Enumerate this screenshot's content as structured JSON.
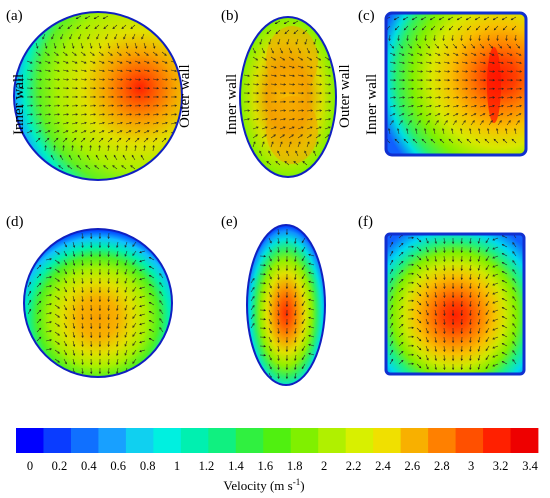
{
  "panels": [
    {
      "id": "a",
      "label": "(a)",
      "shape": "circle",
      "hotspot": "right"
    },
    {
      "id": "b",
      "label": "(b)",
      "shape": "ellipse-vertical",
      "hotspot": "two-lobes"
    },
    {
      "id": "c",
      "label": "(c)",
      "shape": "square",
      "hotspot": "right"
    },
    {
      "id": "d",
      "label": "(d)",
      "shape": "circle",
      "hotspot": "center-low"
    },
    {
      "id": "e",
      "label": "(e)",
      "shape": "ellipse-vertical",
      "hotspot": "center"
    },
    {
      "id": "f",
      "label": "(f)",
      "shape": "square",
      "hotspot": "center-low"
    }
  ],
  "wall_labels": {
    "inner": "Inner wall",
    "outer": "Outer wall"
  },
  "colorbar": {
    "title": "Velocity (m s",
    "title_exponent": "-1",
    "title_close": ")",
    "ticks": [
      "0",
      "0.2",
      "0.4",
      "0.6",
      "0.8",
      "1",
      "1.2",
      "1.4",
      "1.6",
      "1.8",
      "2",
      "2.2",
      "2.4",
      "2.6",
      "2.8",
      "3",
      "3.2",
      "3.4"
    ],
    "colors": [
      "#0000ff",
      "#0a3cff",
      "#1070ff",
      "#18a0ff",
      "#10d0f0",
      "#00f0e0",
      "#00f0b0",
      "#10f080",
      "#30f040",
      "#50f010",
      "#80f000",
      "#b0f000",
      "#d8f000",
      "#f0e000",
      "#f8b000",
      "#ff8000",
      "#ff5000",
      "#ff2000",
      "#ee0000"
    ],
    "min": 0,
    "max": 3.4
  }
}
